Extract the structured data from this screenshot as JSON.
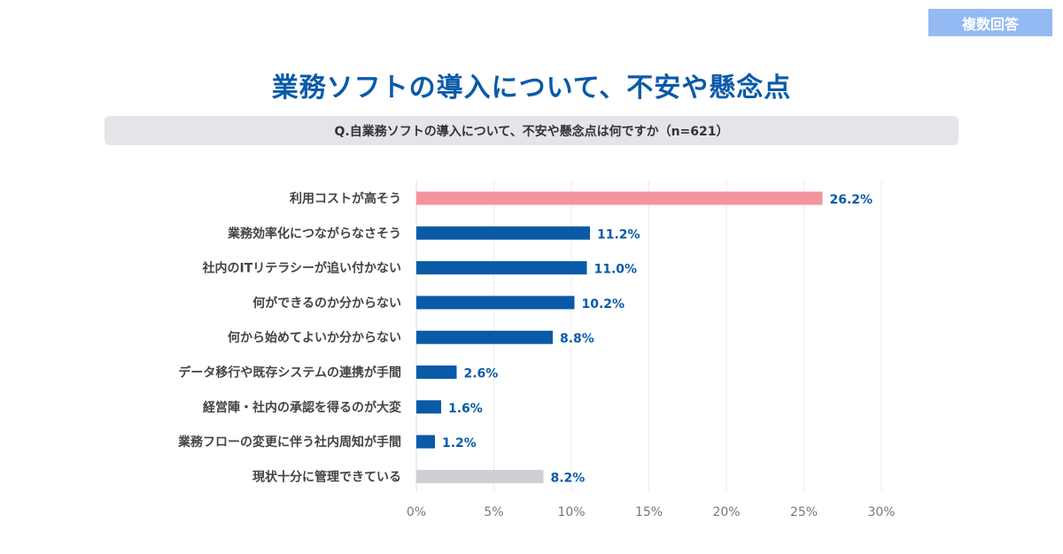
{
  "badge": "複数回答",
  "title": "業務ソフトの導入について、不安や懸念点",
  "question": "Q.自業務ソフトの導入について、不安や懸念点は何ですか（n=621）",
  "colors": {
    "title": "#0a5aa8",
    "badge": "#94baf4",
    "highlight": "#f4949c",
    "primary": "#0a5aa8",
    "neutral": "#cfced3"
  },
  "chart_data": {
    "type": "bar",
    "orientation": "horizontal",
    "categories": [
      "利用コストが高そう",
      "業務効率化につながらなさそう",
      "社内のITリテラシーが追い付かない",
      "何ができるのか分からない",
      "何から始めてよいか分からない",
      "データ移行や既存システムの連携が手間",
      "経営陣・社内の承認を得るのが大変",
      "業務フローの変更に伴う社内周知が手間",
      "現状十分に管理できている"
    ],
    "values": [
      26.2,
      11.2,
      11.0,
      10.2,
      8.8,
      2.6,
      1.6,
      1.2,
      8.2
    ],
    "value_labels": [
      "26.2%",
      "11.2%",
      "11.0%",
      "10.2%",
      "8.8%",
      "2.6%",
      "1.6%",
      "1.2%",
      "8.2%"
    ],
    "bar_colors": [
      "#f4949c",
      "#0a5aa8",
      "#0a5aa8",
      "#0a5aa8",
      "#0a5aa8",
      "#0a5aa8",
      "#0a5aa8",
      "#0a5aa8",
      "#cfced3"
    ],
    "label_colors": [
      "#0a5aa8",
      "#0a5aa8",
      "#0a5aa8",
      "#0a5aa8",
      "#0a5aa8",
      "#0a5aa8",
      "#0a5aa8",
      "#0a5aa8",
      "#0a5aa8"
    ],
    "xticks": [
      0,
      5,
      10,
      15,
      20,
      25,
      30
    ],
    "xtick_labels": [
      "0%",
      "5%",
      "10%",
      "15%",
      "20%",
      "25%",
      "30%"
    ],
    "xlim": [
      0,
      30
    ],
    "grid": true,
    "legend": "none"
  }
}
